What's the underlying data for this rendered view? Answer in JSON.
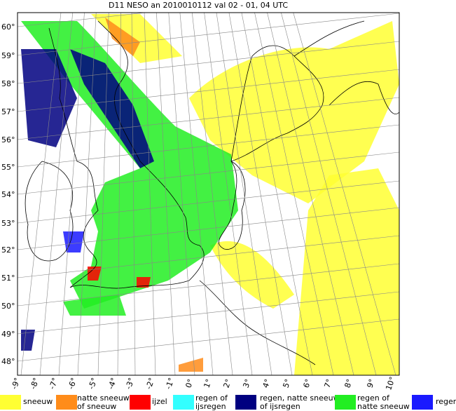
{
  "title": "D11 NESO an 2010010112 val 02 - 01, 04 UTC",
  "lat_labels": [
    "60°",
    "59°",
    "58°",
    "57°",
    "56°",
    "55°",
    "54°",
    "53°",
    "52°",
    "51°",
    "50°",
    "49°",
    "48°"
  ],
  "lon_labels": [
    "-9°",
    "-8°",
    "-7°",
    "-6°",
    "-5°",
    "-4°",
    "-3°",
    "-2°",
    "-1°",
    "0°",
    "1°",
    "2°",
    "3°",
    "4°",
    "5°",
    "6°",
    "7°",
    "8°",
    "9°",
    "10°"
  ],
  "legend": [
    {
      "lines": [
        "sneeuw"
      ],
      "color": "#ffff33"
    },
    {
      "lines": [
        "natte sneeuw",
        "of sneeuw"
      ],
      "color": "#ff8c1a"
    },
    {
      "lines": [
        "ijzel"
      ],
      "color": "#ff0000"
    },
    {
      "lines": [
        "regen of",
        "ijsregen"
      ],
      "color": "#33ffff"
    },
    {
      "lines": [
        "regen, natte sneeuw",
        "of ijsregen"
      ],
      "color": "#000080"
    },
    {
      "lines": [
        "regen of",
        "natte sneeuw"
      ],
      "color": "#22ee22"
    },
    {
      "lines": [
        "regen"
      ],
      "color": "#1a1aff"
    }
  ]
}
